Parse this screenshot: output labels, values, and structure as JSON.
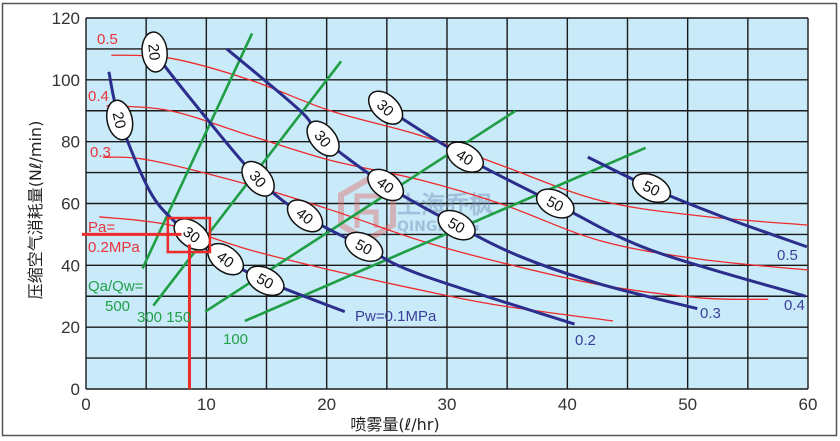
{
  "chart_data": {
    "type": "line",
    "xlabel": "喷雾量(ℓ/hr)",
    "ylabel": "压缩空气消耗量(Nℓ/min)",
    "xlim": [
      0,
      60
    ],
    "ylim": [
      0,
      120
    ],
    "x_ticks": [
      "0",
      "10",
      "20",
      "30",
      "40",
      "50",
      "60"
    ],
    "y_ticks": [
      "0",
      "20",
      "40",
      "60",
      "80",
      "100",
      "120"
    ],
    "grid": {
      "x_step": 5,
      "y_step": 10
    },
    "colors": {
      "background": "#c9eaf8",
      "grid": "#1a1a1a",
      "pw": "#2b2e8c",
      "pa": "#ee2b2b",
      "qa_qw": "#1f9e45",
      "highlight": "#ee2b2b"
    },
    "pw_series": [
      {
        "name": "Pw=0.1MPa",
        "end_label": "Pw=0.1MPa",
        "points": [
          [
            1.9,
            102.6
          ],
          [
            2.8,
            87
          ],
          [
            5.3,
            64
          ],
          [
            7.4,
            54
          ],
          [
            8.8,
            50
          ],
          [
            11.6,
            42
          ],
          [
            14.9,
            35
          ],
          [
            21.5,
            25
          ]
        ],
        "labels": [
          {
            "x": 2.8,
            "y": 87,
            "text": "20"
          },
          {
            "x": 8.8,
            "y": 50,
            "text": "30"
          },
          {
            "x": 11.6,
            "y": 42,
            "text": "40"
          },
          {
            "x": 14.9,
            "y": 35,
            "text": "50"
          }
        ]
      },
      {
        "name": "0.2",
        "end_label": "0.2",
        "points": [
          [
            5.6,
            113
          ],
          [
            5.7,
            109
          ],
          [
            9.5,
            90
          ],
          [
            14.3,
            68
          ],
          [
            18.2,
            56
          ],
          [
            23.1,
            46
          ],
          [
            27.8,
            37
          ],
          [
            40.6,
            21
          ]
        ],
        "labels": [
          {
            "x": 5.7,
            "y": 109,
            "text": "20"
          },
          {
            "x": 14.3,
            "y": 68,
            "text": "30"
          },
          {
            "x": 18.2,
            "y": 56,
            "text": "40"
          },
          {
            "x": 23.1,
            "y": 46,
            "text": "50"
          }
        ]
      },
      {
        "name": "0.3",
        "end_label": "0.3",
        "points": [
          [
            11.7,
            110
          ],
          [
            17.8,
            90
          ],
          [
            19.7,
            81
          ],
          [
            24.9,
            66
          ],
          [
            30.8,
            53
          ],
          [
            36,
            43
          ],
          [
            42.7,
            34
          ],
          [
            50.8,
            26
          ]
        ],
        "labels": [
          {
            "x": 19.7,
            "y": 81,
            "text": "30"
          },
          {
            "x": 24.9,
            "y": 66,
            "text": "40"
          },
          {
            "x": 30.8,
            "y": 53,
            "text": "50"
          }
        ]
      },
      {
        "name": "0.4",
        "end_label": "0.4",
        "points": [
          [
            23.8,
            95
          ],
          [
            24.9,
            91
          ],
          [
            31.5,
            75
          ],
          [
            39,
            60
          ],
          [
            46.9,
            45
          ],
          [
            59.8,
            30
          ]
        ],
        "labels": [
          {
            "x": 24.9,
            "y": 91,
            "text": "30"
          },
          {
            "x": 31.5,
            "y": 75,
            "text": "40"
          },
          {
            "x": 39,
            "y": 60,
            "text": "50"
          }
        ]
      },
      {
        "name": "0.5",
        "end_label": "0.5",
        "points": [
          [
            41.7,
            75
          ],
          [
            47,
            65
          ],
          [
            52.7,
            56
          ],
          [
            59.9,
            46
          ]
        ],
        "labels": [
          {
            "x": 47,
            "y": 65,
            "text": "50"
          }
        ]
      }
    ],
    "pa_series": [
      {
        "name": "0.5",
        "points": [
          [
            2.1,
            108
          ],
          [
            7,
            107
          ],
          [
            13.6,
            100
          ],
          [
            20.3,
            90
          ],
          [
            27.8,
            82
          ],
          [
            34.4,
            72.5
          ],
          [
            42.7,
            61
          ],
          [
            51,
            56
          ],
          [
            60,
            53
          ]
        ]
      },
      {
        "name": "0.4",
        "points": [
          [
            1.7,
            91.6
          ],
          [
            7,
            90
          ],
          [
            13.6,
            82
          ],
          [
            20.3,
            74
          ],
          [
            27.8,
            67.6
          ],
          [
            34.4,
            60
          ],
          [
            42.7,
            48
          ],
          [
            51,
            42
          ],
          [
            60,
            38.5
          ]
        ]
      },
      {
        "name": "0.3",
        "points": [
          [
            1.4,
            75
          ],
          [
            5.3,
            74
          ],
          [
            13.6,
            66
          ],
          [
            20.3,
            58
          ],
          [
            27.8,
            48
          ],
          [
            34.4,
            41
          ],
          [
            42.7,
            33.7
          ],
          [
            51,
            29.5
          ],
          [
            56.7,
            29
          ]
        ]
      },
      {
        "name": "Pa=0.2MPa",
        "points": [
          [
            1.1,
            55.7
          ],
          [
            7,
            53
          ],
          [
            13.6,
            45
          ],
          [
            20.3,
            38.5
          ],
          [
            27.8,
            32
          ],
          [
            34.4,
            27
          ],
          [
            43.8,
            22
          ]
        ]
      }
    ],
    "qa_qw_series": [
      {
        "name": "500",
        "points": [
          [
            4.7,
            39
          ],
          [
            13.8,
            115
          ]
        ]
      },
      {
        "name": "300",
        "points": [
          [
            5.6,
            27
          ],
          [
            21.2,
            106
          ]
        ]
      },
      {
        "name": "150",
        "points": [
          [
            9.9,
            25
          ],
          [
            35.7,
            90
          ]
        ]
      },
      {
        "name": "100",
        "points": [
          [
            13.2,
            22
          ],
          [
            46.5,
            78
          ]
        ]
      }
    ],
    "annotations": {
      "pa_prefix": "Pa=",
      "pa_02": "0.2MPa",
      "pa_03": "0.3",
      "pa_04": "0.4",
      "pa_05": "0.5",
      "qa_prefix": "Qa/Qw=",
      "qa_500": "500",
      "qa_300_150": "300 150",
      "qa_100": "100",
      "pw_01": "Pw=0.1MPa",
      "pw_02": "0.2",
      "pw_03": "0.3",
      "pw_04": "0.4",
      "pw_05": "0.5"
    },
    "highlight": {
      "x": 8.6,
      "y": 50,
      "box_x": [
        6.8,
        10.3
      ],
      "box_y": [
        44.3,
        55.3
      ]
    },
    "watermark": {
      "cn": "上海乔枫",
      "en": "QINGFENG"
    }
  }
}
